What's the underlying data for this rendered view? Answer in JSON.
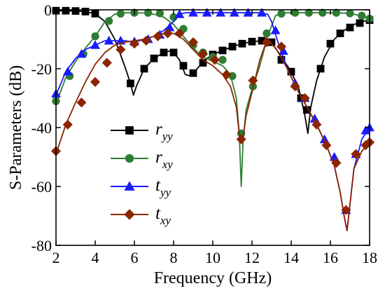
{
  "chart_data": {
    "type": "line",
    "xlabel": "Frequency (GHz)",
    "ylabel": "S-Parameters (dB)",
    "xlim": [
      2,
      18
    ],
    "ylim": [
      -80,
      0
    ],
    "xticks": [
      "2",
      "4",
      "6",
      "8",
      "10",
      "12",
      "14",
      "16",
      "18"
    ],
    "yticks": [
      "0",
      "-20",
      "-40",
      "-60",
      "-80"
    ],
    "grid": false,
    "legend_position": "center-left",
    "series": [
      {
        "name": "ryy",
        "main": "r",
        "sub": "yy",
        "color": "#000000",
        "marker": "square",
        "x": [
          2.0,
          2.5,
          3.0,
          3.5,
          4.0,
          4.5,
          5.0,
          5.5,
          5.8,
          5.95,
          6.1,
          6.5,
          7.0,
          7.5,
          7.8,
          8.0,
          8.3,
          8.6,
          8.9,
          9.2,
          9.6,
          10.0,
          10.5,
          11.0,
          11.5,
          12.0,
          12.5,
          12.9,
          13.2,
          13.6,
          14.0,
          14.4,
          14.7,
          14.85,
          15.0,
          15.3,
          15.7,
          16.2,
          16.7,
          17.2,
          17.6,
          18.0
        ],
        "y": [
          -0.3,
          -0.3,
          -0.4,
          -0.6,
          -1.3,
          -4,
          -10,
          -19,
          -25,
          -29,
          -26,
          -20,
          -16.5,
          -14.5,
          -14,
          -14.5,
          -17,
          -22,
          -22.5,
          -20,
          -17,
          -15.2,
          -13.8,
          -12.5,
          -11.5,
          -10.8,
          -10.5,
          -11,
          -13,
          -17,
          -21,
          -27,
          -36,
          -42,
          -33,
          -24,
          -16,
          -10,
          -7,
          -5,
          -4,
          -3.5
        ],
        "markers_x": [
          2.0,
          2.5,
          3.0,
          3.5,
          4.0,
          5.8,
          6.5,
          7.0,
          7.5,
          8.0,
          8.5,
          9.0,
          9.5,
          10.0,
          10.5,
          11.0,
          11.5,
          12.0,
          12.5,
          13.0,
          13.5,
          14.0,
          14.5,
          14.8,
          15.5,
          16.0,
          16.5,
          17.0,
          17.5,
          18.0
        ],
        "markers_y": [
          -0.3,
          -0.3,
          -0.4,
          -0.6,
          -1.3,
          -25,
          -20,
          -16.5,
          -14.5,
          -14.5,
          -19,
          -21.5,
          -18,
          -15.2,
          -13.8,
          -12.5,
          -11.5,
          -10.8,
          -10.5,
          -11,
          -17,
          -21,
          -30,
          -34,
          -20,
          -11.5,
          -8,
          -6,
          -4.5,
          -3.5
        ]
      },
      {
        "name": "rxy",
        "main": "r",
        "sub": "xy",
        "color": "#2e7d32",
        "marker": "circle",
        "x": [
          2.0,
          2.5,
          3.0,
          3.5,
          4.0,
          4.5,
          5.0,
          5.5,
          6.0,
          6.5,
          7.0,
          7.5,
          8.0,
          8.5,
          9.0,
          9.5,
          10.0,
          10.5,
          10.9,
          11.2,
          11.35,
          11.45,
          11.55,
          11.7,
          12.0,
          12.4,
          12.8,
          13.2,
          13.6,
          14.0,
          15.0,
          16.0,
          17.0,
          17.5,
          18.0
        ],
        "y": [
          -32,
          -23,
          -17.5,
          -13,
          -9,
          -4,
          -1.5,
          -1,
          -1,
          -1.1,
          -1.5,
          -2.5,
          -5,
          -9,
          -13,
          -16,
          -17.5,
          -19,
          -22,
          -30,
          -42,
          -60,
          -44,
          -34,
          -27,
          -19,
          -9,
          -2,
          -1,
          -1,
          -1,
          -1,
          -1.2,
          -2,
          -3
        ],
        "markers_x": [
          2.0,
          2.7,
          3.4,
          4.0,
          4.7,
          5.3,
          6.0,
          6.7,
          7.3,
          8.0,
          8.5,
          9.0,
          9.5,
          10.0,
          10.5,
          11.0,
          11.45,
          12.05,
          12.75,
          13.5,
          14.2,
          14.9,
          15.6,
          16.3,
          17.0,
          17.6,
          18.0
        ],
        "markers_y": [
          -31,
          -22.5,
          -15,
          -9,
          -3.8,
          -1.3,
          -1,
          -1,
          -1.2,
          -2.5,
          -6.5,
          -12,
          -14.5,
          -16,
          -17,
          -22.5,
          -42,
          -26,
          -8,
          -1.3,
          -1,
          -1,
          -1,
          -1,
          -1.2,
          -2,
          -3
        ]
      },
      {
        "name": "tyy",
        "main": "t",
        "sub": "yy",
        "color": "#1a1aff",
        "marker": "triangle",
        "x": [
          2.0,
          2.5,
          3.0,
          3.5,
          4.0,
          4.5,
          5.0,
          5.5,
          6.0,
          6.5,
          7.0,
          7.5,
          8.0,
          8.3,
          8.6,
          9.0,
          9.5,
          10.0,
          10.5,
          11.0,
          11.2,
          11.35,
          11.45,
          11.55,
          11.7,
          12.0,
          12.4,
          12.8,
          13.0,
          13.3,
          13.8,
          14.3,
          14.8,
          15.3,
          15.8,
          16.2,
          16.5,
          16.7,
          16.85,
          17.0,
          17.2,
          17.6,
          18.0
        ],
        "y": [
          -29,
          -21,
          -16.5,
          -13.5,
          -12,
          -10.5,
          -10.5,
          -10.5,
          -11,
          -10,
          -9,
          -7,
          -4,
          -1.5,
          -1,
          -1,
          -1,
          -1,
          -1,
          -1,
          -1,
          -1,
          -1,
          -1,
          -1,
          -1,
          -1,
          -1.5,
          -4,
          -10.5,
          -20,
          -27,
          -33,
          -39,
          -46,
          -53,
          -62,
          -70,
          -75,
          -66,
          -54,
          -44,
          -40
        ],
        "markers_x": [
          2.0,
          2.6,
          3.3,
          4.0,
          4.7,
          5.3,
          6.0,
          6.7,
          7.3,
          7.8,
          8.3,
          9.0,
          9.7,
          10.4,
          11.1,
          11.8,
          12.5,
          13.2,
          13.6,
          14.2,
          14.7,
          15.2,
          15.7,
          16.2,
          16.8,
          17.3,
          17.8,
          18.0
        ],
        "markers_y": [
          -28.5,
          -21,
          -15,
          -12,
          -10.5,
          -10.5,
          -10.8,
          -10,
          -8.5,
          -6,
          -1.5,
          -1,
          -1,
          -1,
          -1,
          -1,
          -1,
          -7,
          -14,
          -25,
          -30,
          -37,
          -44,
          -50,
          -68,
          -49,
          -41,
          -40
        ]
      },
      {
        "name": "txy",
        "main": "t",
        "sub": "xy",
        "color": "#8b2500",
        "marker": "diamond",
        "x": [
          2.0,
          2.5,
          3.0,
          3.5,
          4.0,
          4.5,
          5.0,
          5.5,
          6.0,
          6.5,
          7.0,
          7.5,
          8.0,
          8.5,
          9.0,
          9.5,
          10.0,
          10.5,
          10.9,
          11.2,
          11.35,
          11.45,
          11.55,
          11.7,
          12.0,
          12.4,
          12.75,
          13.0,
          13.3,
          13.8,
          14.3,
          14.8,
          15.3,
          15.8,
          16.2,
          16.5,
          16.7,
          16.85,
          17.0,
          17.2,
          17.6,
          18.0
        ],
        "y": [
          -49,
          -39,
          -31.5,
          -24.5,
          -18.5,
          -14.5,
          -12,
          -11,
          -10.5,
          -10,
          -9,
          -8,
          -8,
          -10,
          -13.5,
          -17,
          -19,
          -22,
          -26,
          -33,
          -42,
          -44,
          -43,
          -36,
          -28,
          -17,
          -10.5,
          -11.5,
          -14,
          -20,
          -27,
          -33,
          -39,
          -46,
          -53,
          -62,
          -70,
          -75,
          -66,
          -54,
          -48,
          -45
        ],
        "markers_x": [
          2.0,
          2.6,
          3.3,
          4.0,
          4.6,
          5.3,
          6.0,
          6.6,
          7.2,
          7.7,
          8.3,
          9.0,
          9.5,
          10.1,
          10.7,
          11.45,
          12.05,
          12.75,
          13.5,
          14.2,
          14.7,
          15.3,
          15.8,
          16.3,
          16.8,
          17.3,
          17.8,
          18.0
        ],
        "markers_y": [
          -48,
          -39,
          -31.5,
          -24.5,
          -18,
          -13.5,
          -11.5,
          -10.5,
          -9,
          -8,
          -8,
          -11,
          -15,
          -17,
          -22,
          -44,
          -24,
          -11,
          -12.5,
          -26,
          -30,
          -39,
          -46,
          -52,
          -68,
          -49,
          -46,
          -45
        ]
      }
    ]
  }
}
